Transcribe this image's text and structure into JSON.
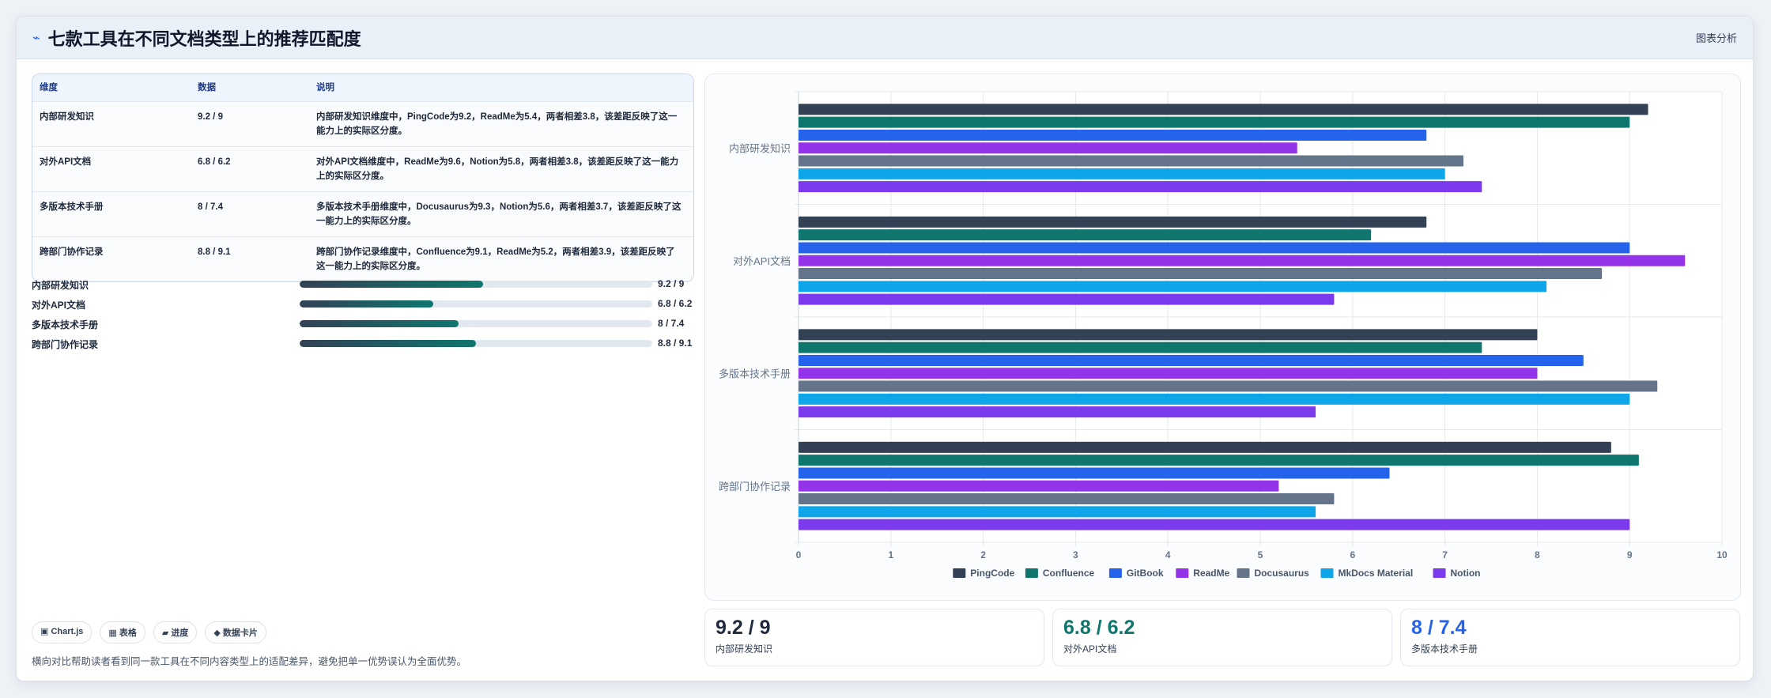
{
  "header": {
    "icon": "⌁",
    "title": "七款工具在不同文档类型上的推荐匹配度",
    "tag": "图表分析"
  },
  "table": {
    "headers": [
      "维度",
      "数据",
      "说明"
    ],
    "rows": [
      {
        "dim": "内部研发知识",
        "data": "9.2 / 9",
        "note": "内部研发知识维度中，PingCode为9.2，ReadMe为5.4，两者相差3.8，该差距反映了这一能力上的实际区分度。"
      },
      {
        "dim": "对外API文档",
        "data": "6.8 / 6.2",
        "note": "对外API文档维度中，ReadMe为9.6，Notion为5.8，两者相差3.8，该差距反映了这一能力上的实际区分度。"
      },
      {
        "dim": "多版本技术手册",
        "data": "8 / 7.4",
        "note": "多版本技术手册维度中，Docusaurus为9.3，Notion为5.6，两者相差3.7，该差距反映了这一能力上的实际区分度。"
      },
      {
        "dim": "跨部门协作记录",
        "data": "8.8 / 9.1",
        "note": "跨部门协作记录维度中，Confluence为9.1，ReadMe为5.2，两者相差3.9，该差距反映了这一能力上的实际区分度。"
      }
    ]
  },
  "progress": [
    {
      "label": "内部研发知识",
      "value": "9.2 / 9",
      "fraction": 0.52
    },
    {
      "label": "对外API文档",
      "value": "6.8 / 6.2",
      "fraction": 0.38
    },
    {
      "label": "多版本技术手册",
      "value": "8 / 7.4",
      "fraction": 0.45
    },
    {
      "label": "跨部门协作记录",
      "value": "8.8 / 9.1",
      "fraction": 0.5
    }
  ],
  "pills": [
    "▣ Chart.js",
    "▦ 表格",
    "▰ 进度",
    "◆ 数据卡片"
  ],
  "footnote": "横向对比帮助读者看到同一款工具在不同内容类型上的适配差异，避免把单一优势误认为全面优势。",
  "stats": [
    {
      "value": "9.2 / 9",
      "label": "内部研发知识",
      "color": "#1e293b"
    },
    {
      "value": "6.8 / 6.2",
      "label": "对外API文档",
      "color": "#0f766e"
    },
    {
      "value": "8 / 7.4",
      "label": "多版本技术手册",
      "color": "#2563eb"
    }
  ],
  "chart_data": {
    "type": "bar",
    "orientation": "horizontal",
    "categories": [
      "内部研发知识",
      "对外API文档",
      "多版本技术手册",
      "跨部门协作记录"
    ],
    "xlim": [
      0,
      10
    ],
    "ticks": [
      0,
      1,
      2,
      3,
      4,
      5,
      6,
      7,
      8,
      9,
      10
    ],
    "grid": true,
    "legend": "bottom",
    "series": [
      {
        "name": "PingCode",
        "color": "#334155",
        "values": [
          9.2,
          6.8,
          8.0,
          8.8
        ]
      },
      {
        "name": "Confluence",
        "color": "#0f766e",
        "values": [
          9.0,
          6.2,
          7.4,
          9.1
        ]
      },
      {
        "name": "GitBook",
        "color": "#2563eb",
        "values": [
          6.8,
          9.0,
          8.5,
          6.4
        ]
      },
      {
        "name": "ReadMe",
        "color": "#9333ea",
        "values": [
          5.4,
          9.6,
          8.0,
          5.2
        ]
      },
      {
        "name": "Docusaurus",
        "color": "#64748b",
        "values": [
          7.2,
          8.7,
          9.3,
          5.8
        ]
      },
      {
        "name": "MkDocs Material",
        "color": "#0ea5e9",
        "values": [
          7.0,
          8.1,
          9.0,
          5.6
        ]
      },
      {
        "name": "Notion",
        "color": "#7c3aed",
        "values": [
          7.4,
          5.8,
          5.6,
          9.0
        ]
      }
    ]
  }
}
